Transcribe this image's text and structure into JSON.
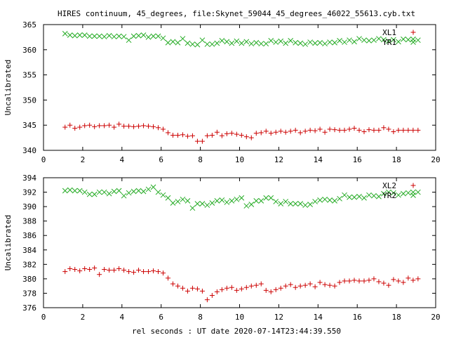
{
  "title": "HIRES continuum, 45_degrees, file:Skynet_59044_45_degrees_46022_55613.cyb.txt",
  "xlabel": "rel seconds : UT date 2020-07-14T23:44:39.550",
  "colors": {
    "xl": "#cc0000",
    "yr": "#22aa22",
    "axis": "#000000"
  },
  "chart_data": [
    {
      "type": "scatter",
      "ylabel": "Uncalibrated",
      "xlim": [
        0,
        20
      ],
      "ylim": [
        340,
        365
      ],
      "xticks": [
        0,
        2,
        4,
        6,
        8,
        10,
        12,
        14,
        16,
        18,
        20
      ],
      "yticks": [
        340,
        345,
        350,
        355,
        360,
        365
      ],
      "legend_position": "top-right",
      "series": [
        {
          "name": "XL1",
          "marker": "plus",
          "color": "#cc0000",
          "x": [
            1.1,
            1.35,
            1.6,
            1.85,
            2.1,
            2.35,
            2.6,
            2.85,
            3.1,
            3.35,
            3.6,
            3.85,
            4.1,
            4.35,
            4.6,
            4.85,
            5.1,
            5.35,
            5.6,
            5.85,
            6.1,
            6.35,
            6.6,
            6.85,
            7.1,
            7.35,
            7.6,
            7.85,
            8.1,
            8.35,
            8.6,
            8.85,
            9.1,
            9.35,
            9.6,
            9.85,
            10.1,
            10.35,
            10.6,
            10.85,
            11.1,
            11.35,
            11.6,
            11.85,
            12.1,
            12.35,
            12.6,
            12.85,
            13.1,
            13.35,
            13.6,
            13.85,
            14.1,
            14.35,
            14.6,
            14.85,
            15.1,
            15.35,
            15.6,
            15.85,
            16.1,
            16.35,
            16.6,
            16.85,
            17.1,
            17.35,
            17.6,
            17.85,
            18.1,
            18.35,
            18.6,
            18.85,
            19.1
          ],
          "values": [
            344.6,
            345.0,
            344.4,
            344.6,
            344.9,
            345.0,
            344.7,
            344.9,
            344.9,
            345.0,
            344.6,
            345.2,
            344.8,
            344.8,
            344.7,
            344.8,
            344.9,
            344.8,
            344.7,
            344.5,
            344.2,
            343.5,
            343.0,
            343.0,
            343.1,
            342.8,
            342.9,
            341.8,
            341.8,
            342.9,
            343.0,
            343.6,
            342.9,
            343.3,
            343.4,
            343.2,
            343.0,
            342.7,
            342.5,
            343.4,
            343.5,
            343.8,
            343.4,
            343.6,
            343.8,
            343.6,
            343.8,
            344.0,
            343.5,
            343.8,
            344.0,
            343.9,
            344.2,
            343.6,
            344.2,
            344.1,
            344.0,
            344.0,
            344.2,
            344.4,
            344.0,
            343.7,
            344.1,
            344.0,
            344.0,
            344.5,
            344.2,
            343.7,
            344.0,
            344.0,
            344.0,
            344.0,
            344.0
          ]
        },
        {
          "name": "YR1",
          "marker": "cross",
          "color": "#22aa22",
          "x": [
            1.1,
            1.35,
            1.6,
            1.85,
            2.1,
            2.35,
            2.6,
            2.85,
            3.1,
            3.35,
            3.6,
            3.85,
            4.1,
            4.35,
            4.6,
            4.85,
            5.1,
            5.35,
            5.6,
            5.85,
            6.1,
            6.35,
            6.6,
            6.85,
            7.1,
            7.35,
            7.6,
            7.85,
            8.1,
            8.35,
            8.6,
            8.85,
            9.1,
            9.35,
            9.6,
            9.85,
            10.1,
            10.35,
            10.6,
            10.85,
            11.1,
            11.35,
            11.6,
            11.85,
            12.1,
            12.35,
            12.6,
            12.85,
            13.1,
            13.35,
            13.6,
            13.85,
            14.1,
            14.35,
            14.6,
            14.85,
            15.1,
            15.35,
            15.6,
            15.85,
            16.1,
            16.35,
            16.6,
            16.85,
            17.1,
            17.35,
            17.6,
            17.85,
            18.1,
            18.35,
            18.6,
            18.85,
            19.1
          ],
          "values": [
            363.2,
            362.9,
            362.8,
            362.9,
            362.9,
            362.7,
            362.7,
            362.7,
            362.6,
            362.8,
            362.6,
            362.7,
            362.6,
            361.9,
            362.7,
            362.8,
            362.9,
            362.5,
            362.7,
            362.7,
            362.3,
            361.4,
            361.6,
            361.4,
            362.2,
            361.3,
            361.1,
            361.0,
            361.9,
            361.1,
            361.1,
            361.3,
            361.8,
            361.6,
            361.3,
            361.7,
            361.3,
            361.6,
            361.2,
            361.4,
            361.2,
            361.2,
            361.8,
            361.5,
            361.7,
            361.3,
            361.8,
            361.4,
            361.3,
            361.1,
            361.5,
            361.3,
            361.4,
            361.2,
            361.5,
            361.4,
            361.8,
            361.5,
            361.9,
            361.6,
            362.2,
            361.9,
            361.8,
            361.9,
            362.2,
            362.0,
            361.7,
            362.0,
            361.6,
            362.1,
            362.0,
            362.1,
            361.9
          ]
        }
      ]
    },
    {
      "type": "scatter",
      "ylabel": "Uncalibrated",
      "xlim": [
        0,
        20
      ],
      "ylim": [
        376,
        394
      ],
      "xticks": [
        0,
        2,
        4,
        6,
        8,
        10,
        12,
        14,
        16,
        18,
        20
      ],
      "yticks": [
        376,
        378,
        380,
        382,
        384,
        386,
        388,
        390,
        392,
        394
      ],
      "legend_position": "top-right",
      "series": [
        {
          "name": "XL2",
          "marker": "plus",
          "color": "#cc0000",
          "x": [
            1.1,
            1.35,
            1.6,
            1.85,
            2.1,
            2.35,
            2.6,
            2.85,
            3.1,
            3.35,
            3.6,
            3.85,
            4.1,
            4.35,
            4.6,
            4.85,
            5.1,
            5.35,
            5.6,
            5.85,
            6.1,
            6.35,
            6.6,
            6.85,
            7.1,
            7.35,
            7.6,
            7.85,
            8.1,
            8.35,
            8.6,
            8.85,
            9.1,
            9.35,
            9.6,
            9.85,
            10.1,
            10.35,
            10.6,
            10.85,
            11.1,
            11.35,
            11.6,
            11.85,
            12.1,
            12.35,
            12.6,
            12.85,
            13.1,
            13.35,
            13.6,
            13.85,
            14.1,
            14.35,
            14.6,
            14.85,
            15.1,
            15.35,
            15.6,
            15.85,
            16.1,
            16.35,
            16.6,
            16.85,
            17.1,
            17.35,
            17.6,
            17.85,
            18.1,
            18.35,
            18.6,
            18.85,
            19.1
          ],
          "values": [
            381.0,
            381.4,
            381.3,
            381.1,
            381.4,
            381.3,
            381.5,
            380.6,
            381.3,
            381.2,
            381.2,
            381.4,
            381.2,
            381.0,
            380.9,
            381.2,
            381.0,
            381.0,
            381.1,
            381.0,
            380.8,
            380.1,
            379.3,
            379.0,
            378.7,
            378.3,
            378.7,
            378.6,
            378.3,
            377.1,
            377.7,
            378.2,
            378.5,
            378.7,
            378.8,
            378.4,
            378.6,
            378.8,
            379.0,
            379.1,
            379.3,
            378.4,
            378.2,
            378.5,
            378.7,
            379.0,
            379.2,
            378.8,
            379.0,
            379.1,
            379.3,
            378.9,
            379.5,
            379.2,
            379.1,
            379.0,
            379.5,
            379.7,
            379.7,
            379.8,
            379.7,
            379.7,
            379.8,
            380.0,
            379.6,
            379.4,
            379.1,
            379.9,
            379.7,
            379.5,
            380.1,
            379.8,
            380.0
          ]
        },
        {
          "name": "YR2",
          "marker": "cross",
          "color": "#22aa22",
          "x": [
            1.1,
            1.35,
            1.6,
            1.85,
            2.1,
            2.35,
            2.6,
            2.85,
            3.1,
            3.35,
            3.6,
            3.85,
            4.1,
            4.35,
            4.6,
            4.85,
            5.1,
            5.35,
            5.6,
            5.85,
            6.1,
            6.35,
            6.6,
            6.85,
            7.1,
            7.35,
            7.6,
            7.85,
            8.1,
            8.35,
            8.6,
            8.85,
            9.1,
            9.35,
            9.6,
            9.85,
            10.1,
            10.35,
            10.6,
            10.85,
            11.1,
            11.35,
            11.6,
            11.85,
            12.1,
            12.35,
            12.6,
            12.85,
            13.1,
            13.35,
            13.6,
            13.85,
            14.1,
            14.35,
            14.6,
            14.85,
            15.1,
            15.35,
            15.6,
            15.85,
            16.1,
            16.35,
            16.6,
            16.85,
            17.1,
            17.35,
            17.6,
            17.85,
            18.1,
            18.35,
            18.6,
            18.85,
            19.1
          ],
          "values": [
            392.2,
            392.3,
            392.2,
            392.2,
            392.0,
            391.7,
            391.7,
            392.0,
            392.0,
            391.8,
            392.1,
            392.2,
            391.5,
            391.9,
            392.1,
            392.2,
            392.1,
            392.4,
            392.7,
            392.0,
            391.6,
            391.2,
            390.5,
            390.7,
            391.0,
            390.8,
            389.8,
            390.4,
            390.4,
            390.2,
            390.5,
            390.8,
            390.9,
            390.6,
            390.8,
            391.0,
            391.2,
            390.1,
            390.3,
            390.8,
            390.8,
            391.2,
            391.2,
            390.7,
            390.4,
            390.7,
            390.4,
            390.4,
            390.4,
            390.2,
            390.3,
            390.7,
            390.9,
            391.0,
            390.9,
            390.8,
            391.1,
            391.6,
            391.3,
            391.3,
            391.4,
            391.2,
            391.6,
            391.5,
            391.4,
            391.8,
            392.0,
            391.9,
            391.6,
            391.8,
            391.9,
            392.0,
            392.0
          ]
        }
      ]
    }
  ]
}
